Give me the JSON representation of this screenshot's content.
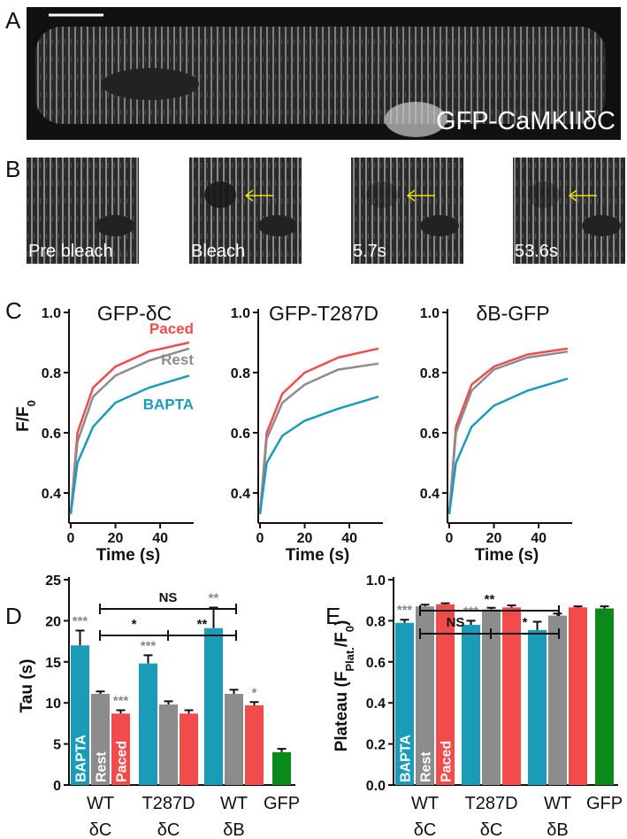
{
  "panel_a": {
    "label": "A",
    "caption": "GFP-CaMKIIδC"
  },
  "panel_b": {
    "label": "B",
    "frames": [
      "Pre bleach",
      "Bleach",
      "5.7s",
      "53.6s"
    ]
  },
  "chart_data": [
    {
      "type": "line",
      "panel": "C",
      "title": "GFP-δC",
      "ylabel": [
        "F/F",
        "0"
      ],
      "xlabel": "Time (s)",
      "x": [
        0,
        3,
        10,
        20,
        35,
        53
      ],
      "xlim": [
        0,
        55
      ],
      "xticks": [
        0,
        20,
        40
      ],
      "ylim": [
        0.3,
        1.0
      ],
      "yticks": [
        {
          "value": 1.0,
          "label": "1.0"
        },
        0.8,
        0.6,
        0.4
      ],
      "series": [
        {
          "name": "Paced",
          "color": "#f24b4b",
          "values": [
            0.33,
            0.6,
            0.75,
            0.82,
            0.87,
            0.9
          ]
        },
        {
          "name": "Rest",
          "color": "#8c8c8c",
          "values": [
            0.33,
            0.57,
            0.72,
            0.79,
            0.84,
            0.88
          ]
        },
        {
          "name": "BAPTA",
          "color": "#1a9cb8",
          "values": [
            0.33,
            0.5,
            0.62,
            0.7,
            0.75,
            0.79
          ]
        }
      ]
    },
    {
      "type": "line",
      "title": "GFP-T287D",
      "xlabel": "Time (s)",
      "x": [
        0,
        3,
        10,
        20,
        35,
        53
      ],
      "xlim": [
        0,
        55
      ],
      "xticks": [
        0,
        20,
        40
      ],
      "ylim": [
        0.3,
        1.0
      ],
      "yticks": [
        {
          "value": 1.0,
          "label": "1.0"
        },
        0.8,
        0.6,
        0.4
      ],
      "series": [
        {
          "color": "#f24b4b",
          "values": [
            0.33,
            0.6,
            0.73,
            0.8,
            0.85,
            0.88
          ]
        },
        {
          "color": "#8c8c8c",
          "values": [
            0.33,
            0.58,
            0.7,
            0.76,
            0.81,
            0.83
          ]
        },
        {
          "color": "#1a9cb8",
          "values": [
            0.33,
            0.5,
            0.59,
            0.64,
            0.68,
            0.72
          ]
        }
      ]
    },
    {
      "type": "line",
      "title": "δB-GFP",
      "xlabel": "Time (s)",
      "x": [
        0,
        3,
        10,
        20,
        35,
        53
      ],
      "xlim": [
        0,
        55
      ],
      "xticks": [
        0,
        20,
        40
      ],
      "ylim": [
        0.3,
        1.0
      ],
      "yticks": [
        {
          "value": 1.0,
          "label": "1.0"
        },
        0.8,
        0.6,
        0.4
      ],
      "series": [
        {
          "color": "#f24b4b",
          "values": [
            0.33,
            0.62,
            0.76,
            0.82,
            0.86,
            0.88
          ]
        },
        {
          "color": "#8c8c8c",
          "values": [
            0.33,
            0.6,
            0.74,
            0.81,
            0.85,
            0.87
          ]
        },
        {
          "color": "#1a9cb8",
          "values": [
            0.33,
            0.5,
            0.62,
            0.69,
            0.74,
            0.78
          ]
        }
      ]
    },
    {
      "type": "bar",
      "panel": "D",
      "ylabel": [
        "Tau (s)"
      ],
      "categories": [
        [
          "WT",
          "δC"
        ],
        [
          "T287D",
          "δC"
        ],
        [
          "WT",
          "δB"
        ],
        [
          "GFP"
        ]
      ],
      "ylim": [
        0,
        25
      ],
      "yticks": [
        0,
        5,
        10,
        15,
        20,
        25
      ],
      "comparisons": [
        "NS",
        "*",
        "**"
      ],
      "series": [
        {
          "name": "BAPTA",
          "color": "#1a9cb8",
          "values": [
            17.0,
            14.8,
            19.1,
            null
          ],
          "errors": [
            1.8,
            1.0,
            2.5,
            null
          ],
          "significance": [
            "***",
            "***",
            "**",
            null
          ]
        },
        {
          "name": "Rest",
          "color": "#8c8c8c",
          "values": [
            11.1,
            9.8,
            11.1,
            null
          ],
          "errors": [
            0.3,
            0.4,
            0.5,
            null
          ]
        },
        {
          "name": "Paced",
          "color": "#f24b4b",
          "values": [
            8.7,
            8.7,
            9.7,
            null
          ],
          "errors": [
            0.4,
            0.4,
            0.4,
            null
          ],
          "significance": [
            "***",
            null,
            "*",
            null
          ]
        },
        {
          "color": "#0a8a1a",
          "values": [
            null,
            null,
            null,
            4.0
          ],
          "errors": [
            null,
            null,
            null,
            0.4
          ]
        }
      ]
    },
    {
      "type": "bar",
      "panel": "E",
      "ylabel": [
        "Plateau (F",
        "Plat.",
        "/F",
        "0",
        ")"
      ],
      "categories": [
        [
          "WT",
          "δC"
        ],
        [
          "T287D",
          "δC"
        ],
        [
          "WT",
          "δB"
        ],
        [
          "GFP"
        ]
      ],
      "ylim": [
        0,
        1.0
      ],
      "yticks": [
        {
          "value": 0,
          "label": "0.0"
        },
        0.2,
        0.4,
        0.6,
        0.8,
        {
          "value": 1.0,
          "label": "1.0"
        }
      ],
      "comparisons": [
        "**",
        "NS",
        "*"
      ],
      "series": [
        {
          "name": "BAPTA",
          "color": "#1a9cb8",
          "values": [
            0.79,
            0.78,
            0.755,
            null
          ],
          "errors": [
            0.015,
            0.02,
            0.04,
            null
          ],
          "significance": [
            "***",
            "***",
            null,
            null
          ]
        },
        {
          "name": "Rest",
          "color": "#8c8c8c",
          "values": [
            0.87,
            0.855,
            0.825,
            null
          ],
          "errors": [
            0.008,
            0.008,
            0.01,
            null
          ]
        },
        {
          "name": "Paced",
          "color": "#f24b4b",
          "values": [
            0.88,
            0.865,
            0.865,
            null
          ],
          "errors": [
            0.005,
            0.01,
            0.005,
            null
          ]
        },
        {
          "color": "#0a8a1a",
          "values": [
            null,
            null,
            null,
            0.86
          ],
          "errors": [
            null,
            null,
            null,
            0.01
          ]
        }
      ]
    }
  ]
}
